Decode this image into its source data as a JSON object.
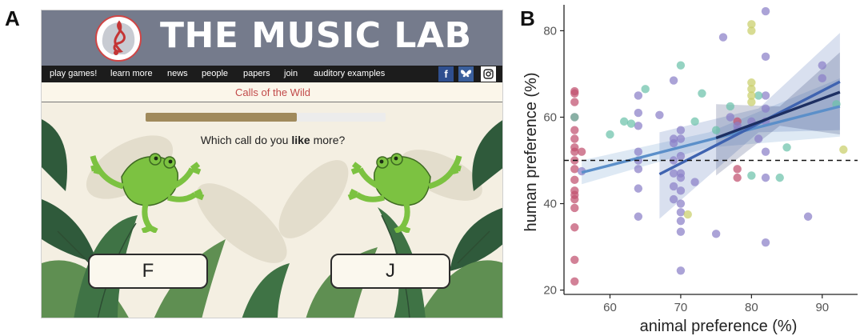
{
  "panel_labels": {
    "a": "A",
    "b": "B"
  },
  "site": {
    "title": "THE MUSIC LAB",
    "nav": [
      "play games!",
      "learn more",
      "news",
      "people",
      "papers",
      "join",
      "auditory examples"
    ],
    "social": {
      "facebook": "f",
      "bluesky": "bluesky",
      "instagram": "instagram"
    },
    "game_name": "Calls of the Wild",
    "progress": 0.63,
    "question": {
      "before": "Which call do you ",
      "emphasis": "like",
      "after": " more?"
    },
    "buttons": {
      "left": "F",
      "right": "J"
    },
    "colors": {
      "header": "#757b8c",
      "nav": "#1c1c1c",
      "game_name": "#c24a4a",
      "progress": "#a08a5c",
      "frog": "#7cc241"
    }
  },
  "chart_data": {
    "type": "scatter",
    "xlabel": "animal preference (%)",
    "ylabel": "human preference (%)",
    "xlim": [
      53.5,
      95
    ],
    "ylim": [
      19,
      86
    ],
    "xticks": [
      60,
      70,
      80,
      90
    ],
    "yticks": [
      20,
      40,
      60,
      80
    ],
    "reference_line_y": 50,
    "grid": false,
    "series": [
      {
        "color": "#c0506f",
        "points": [
          [
            55,
            66
          ],
          [
            55,
            65.5
          ],
          [
            55,
            63.5
          ],
          [
            55,
            60
          ],
          [
            55,
            57
          ],
          [
            55,
            55
          ],
          [
            55,
            53
          ],
          [
            55,
            52
          ],
          [
            55,
            50
          ],
          [
            55,
            48
          ],
          [
            55,
            45.5
          ],
          [
            55,
            43
          ],
          [
            55,
            42
          ],
          [
            55,
            41
          ],
          [
            55,
            39
          ],
          [
            55,
            34.5
          ],
          [
            55,
            27
          ],
          [
            55,
            22
          ],
          [
            56,
            52
          ],
          [
            78,
            59
          ],
          [
            78,
            48
          ],
          [
            78,
            46
          ]
        ]
      },
      {
        "color": "#8b7fc7",
        "points": [
          [
            56,
            47.5
          ],
          [
            64,
            65
          ],
          [
            64,
            61
          ],
          [
            64,
            58
          ],
          [
            64,
            52
          ],
          [
            64,
            50
          ],
          [
            64,
            48
          ],
          [
            64,
            43.5
          ],
          [
            64,
            37
          ],
          [
            67,
            60.5
          ],
          [
            69,
            68.5
          ],
          [
            69,
            55
          ],
          [
            69,
            54
          ],
          [
            69,
            50
          ],
          [
            69,
            47
          ],
          [
            69,
            44
          ],
          [
            69,
            41
          ],
          [
            70,
            57
          ],
          [
            70,
            55
          ],
          [
            70,
            51
          ],
          [
            70,
            47
          ],
          [
            70,
            46
          ],
          [
            70,
            43
          ],
          [
            70,
            40
          ],
          [
            70,
            38
          ],
          [
            70,
            36
          ],
          [
            70,
            33.5
          ],
          [
            70,
            24.5
          ],
          [
            72,
            45
          ],
          [
            75,
            33
          ],
          [
            76,
            78.5
          ],
          [
            77,
            60
          ],
          [
            78,
            58
          ],
          [
            78,
            57
          ],
          [
            80,
            59
          ],
          [
            81,
            55
          ],
          [
            82,
            84.5
          ],
          [
            82,
            74
          ],
          [
            82,
            65
          ],
          [
            82,
            62
          ],
          [
            82,
            59
          ],
          [
            82,
            52
          ],
          [
            82,
            46
          ],
          [
            82,
            31
          ],
          [
            88,
            37
          ],
          [
            90,
            72
          ],
          [
            90,
            69
          ]
        ]
      },
      {
        "color": "#6cc2ab",
        "points": [
          [
            55,
            60
          ],
          [
            60,
            56
          ],
          [
            62,
            59
          ],
          [
            63,
            58.5
          ],
          [
            65,
            66.5
          ],
          [
            70,
            72
          ],
          [
            72,
            59
          ],
          [
            73,
            65.5
          ],
          [
            75,
            57
          ],
          [
            77,
            62.5
          ],
          [
            80,
            46.5
          ],
          [
            81,
            65
          ],
          [
            84,
            46
          ],
          [
            85,
            53
          ],
          [
            92,
            63
          ]
        ]
      },
      {
        "color": "#c9cf6a",
        "points": [
          [
            71,
            37.5
          ],
          [
            80,
            81.5
          ],
          [
            80,
            80
          ],
          [
            80,
            68
          ],
          [
            80,
            66.5
          ],
          [
            80,
            65
          ],
          [
            80,
            63.5
          ],
          [
            93,
            52.5
          ]
        ]
      }
    ],
    "fits": [
      {
        "color": "#5b8fc9",
        "x": [
          56,
          92.5
        ],
        "y": [
          47.2,
          62.5
        ],
        "ci": [
          [
            56,
            44.5,
            50
          ],
          [
            74,
            53,
            56.5
          ],
          [
            92.5,
            55.5,
            69
          ]
        ]
      },
      {
        "color": "#3f63b0",
        "x": [
          67,
          92.5
        ],
        "y": [
          46.8,
          68.2
        ],
        "ci": [
          [
            67,
            36.5,
            56.5
          ],
          [
            81,
            56.5,
            62
          ],
          [
            92.5,
            57,
            79.5
          ]
        ]
      },
      {
        "color": "#1d2f62",
        "x": [
          75,
          92.5
        ],
        "y": [
          55.2,
          65.8
        ],
        "ci": [
          [
            75,
            46.5,
            63
          ],
          [
            84,
            58,
            62.5
          ],
          [
            92.5,
            56,
            75
          ]
        ]
      }
    ]
  }
}
